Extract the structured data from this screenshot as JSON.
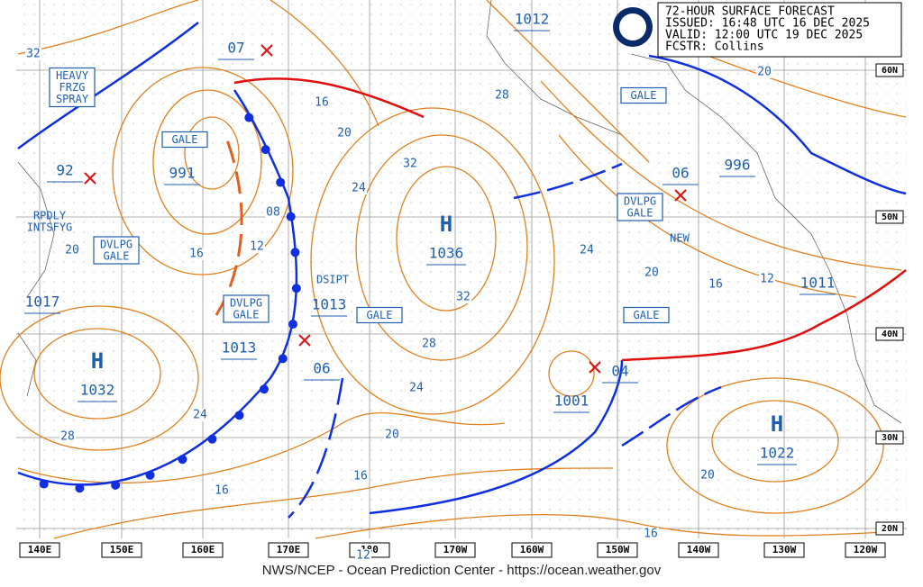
{
  "header": {
    "title": "72-HOUR SURFACE FORECAST",
    "issued": "ISSUED: 16:48 UTC 16 DEC 2025",
    "valid": "VALID:  12:00 UTC 19 DEC 2025",
    "forecaster": "FCSTR:  Collins"
  },
  "footer": "NWS/NCEP - Ocean Prediction Center - https://ocean.weather.gov",
  "longitude_labels": [
    "140E",
    "150E",
    "160E",
    "170E",
    "180",
    "170W",
    "160W",
    "150W",
    "140W",
    "130W",
    "120W"
  ],
  "latitude_labels": [
    "60N",
    "50N",
    "40N",
    "30N",
    "20N"
  ],
  "highs": [
    {
      "symbol": "H",
      "pressure": "1036"
    },
    {
      "symbol": "H",
      "pressure": "1032"
    },
    {
      "symbol": "H",
      "pressure": "1022"
    }
  ],
  "lows": [
    "991",
    "1017",
    "1013",
    "1013",
    "06",
    "1001",
    "04",
    "07",
    "92",
    "996",
    "06",
    "1012",
    "1011"
  ],
  "warning_boxes": [
    [
      "HEAVY",
      "FRZG",
      "SPRAY"
    ],
    [
      "GALE"
    ],
    [
      "DVLPG",
      "GALE"
    ],
    [
      "DVLPG",
      "GALE"
    ],
    [
      "GALE"
    ],
    [
      "GALE"
    ],
    [
      "DVLPG",
      "GALE"
    ],
    [
      "GALE"
    ]
  ],
  "annotations": [
    [
      "RPDLY",
      "INTSFYG"
    ],
    [
      "DSIPT"
    ],
    [
      "NEW"
    ]
  ],
  "isobar_labels": [
    "32",
    "16",
    "20",
    "32",
    "24",
    "08",
    "12",
    "16",
    "20",
    "32",
    "28",
    "24",
    "20",
    "24",
    "28",
    "16",
    "16",
    "12",
    "24",
    "20",
    "16",
    "12",
    "20",
    "28",
    "20",
    "16"
  ]
}
